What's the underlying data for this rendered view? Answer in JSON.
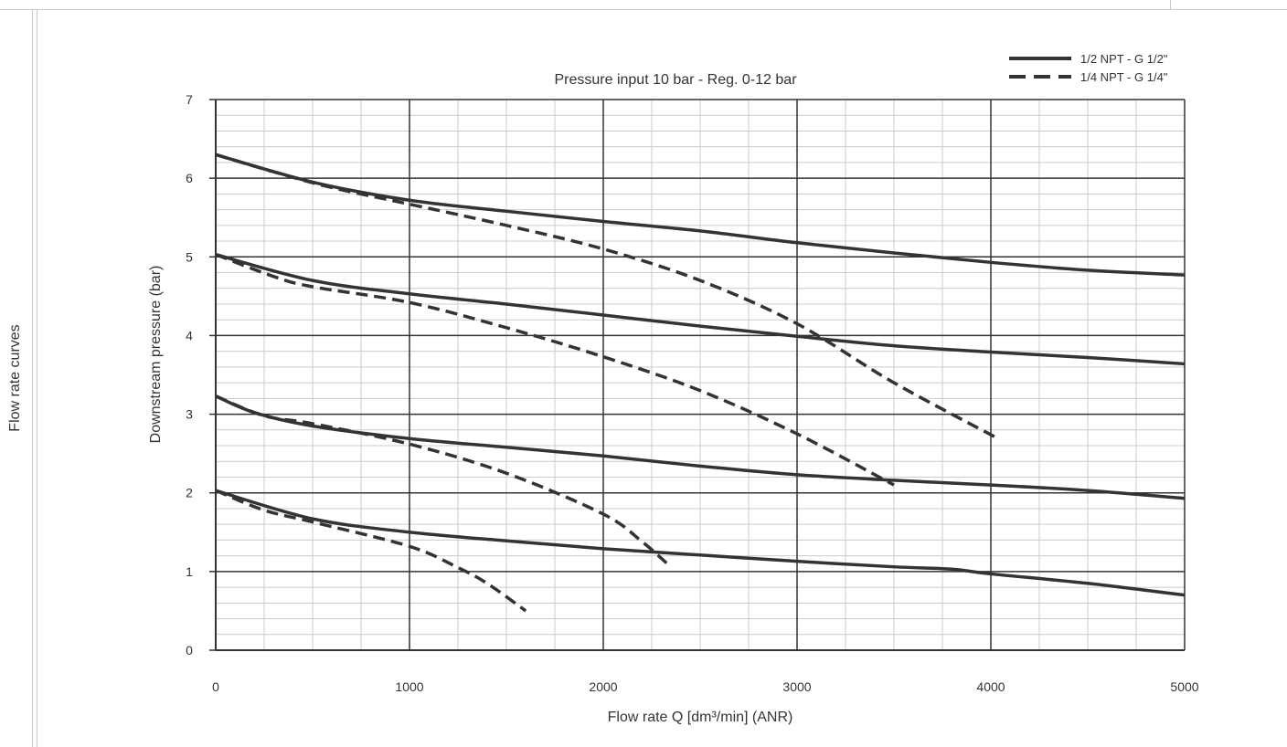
{
  "side_title": "Flow rate curves",
  "chart_data": {
    "type": "line",
    "title": "Pressure  input  10 bar - Reg. 0-12 bar",
    "xlabel": "Flow rate Q [dm³/min] (ANR)",
    "ylabel": "Downstream pressure (bar)",
    "xlim": [
      0,
      5000
    ],
    "ylim": [
      0,
      7
    ],
    "x_ticks": [
      0,
      1000,
      2000,
      3000,
      4000,
      5000
    ],
    "y_ticks": [
      0,
      1,
      2,
      3,
      4,
      5,
      6,
      7
    ],
    "x_minor_step": 250,
    "y_minor_step": 0.2,
    "grid": true,
    "legend_position": "top-right",
    "colors": {
      "line": "#333333",
      "major_grid": "#333333",
      "minor_grid": "#cccccc"
    },
    "legend": [
      {
        "label": "1/2 NPT - G 1/2\"",
        "style": "solid"
      },
      {
        "label": "1/4 NPT - G 1/4\"",
        "style": "dashed"
      }
    ],
    "series": [
      {
        "style": "solid",
        "x": [
          0,
          500,
          1000,
          1500,
          2000,
          2500,
          3000,
          3500,
          4000,
          4500,
          5000
        ],
        "y": [
          6.3,
          5.95,
          5.72,
          5.58,
          5.45,
          5.33,
          5.18,
          5.05,
          4.93,
          4.83,
          4.77
        ]
      },
      {
        "style": "solid",
        "x": [
          0,
          500,
          1000,
          1500,
          2000,
          2500,
          3000,
          3500,
          4000,
          4500,
          5000
        ],
        "y": [
          5.03,
          4.7,
          4.53,
          4.4,
          4.26,
          4.12,
          3.99,
          3.87,
          3.79,
          3.72,
          3.64
        ]
      },
      {
        "style": "solid",
        "x": [
          0,
          200,
          500,
          1000,
          1500,
          2000,
          2500,
          3000,
          3500,
          4000,
          4500,
          5000
        ],
        "y": [
          3.23,
          3.02,
          2.85,
          2.69,
          2.58,
          2.47,
          2.34,
          2.23,
          2.16,
          2.1,
          2.03,
          1.93
        ]
      },
      {
        "style": "solid",
        "x": [
          0,
          500,
          1000,
          1500,
          2000,
          2500,
          3000,
          3500,
          3800,
          4000,
          4500,
          5000
        ],
        "y": [
          2.03,
          1.67,
          1.5,
          1.39,
          1.29,
          1.21,
          1.13,
          1.06,
          1.03,
          0.97,
          0.85,
          0.7
        ]
      },
      {
        "style": "dashed",
        "x": [
          0,
          300,
          600,
          1000,
          1500,
          2000,
          2500,
          3000,
          3500,
          4030
        ],
        "y": [
          6.3,
          6.08,
          5.88,
          5.67,
          5.4,
          5.1,
          4.7,
          4.15,
          3.4,
          2.7
        ]
      },
      {
        "style": "dashed",
        "x": [
          0,
          300,
          500,
          1000,
          1500,
          2000,
          2500,
          3000,
          3500
        ],
        "y": [
          5.03,
          4.75,
          4.62,
          4.42,
          4.1,
          3.73,
          3.3,
          2.75,
          2.1
        ]
      },
      {
        "style": "dashed",
        "x": [
          0,
          250,
          500,
          1000,
          1500,
          2000,
          2200,
          2330
        ],
        "y": [
          3.23,
          2.98,
          2.88,
          2.62,
          2.25,
          1.73,
          1.38,
          1.1
        ]
      },
      {
        "style": "dashed",
        "x": [
          0,
          250,
          500,
          1000,
          1250,
          1400,
          1600
        ],
        "y": [
          2.03,
          1.78,
          1.63,
          1.32,
          1.05,
          0.85,
          0.5
        ]
      }
    ]
  }
}
